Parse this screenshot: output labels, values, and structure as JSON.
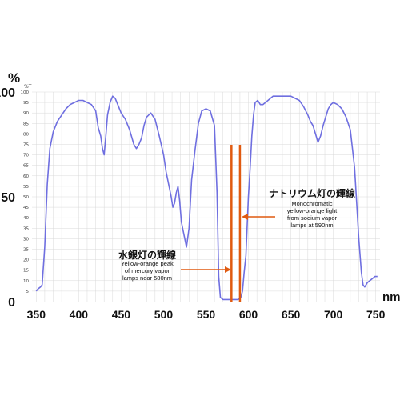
{
  "chart_data": {
    "type": "line",
    "yunit_label": "%",
    "yunit_small": "%T",
    "xunit_label": "nm",
    "xlim": [
      345,
      755
    ],
    "ylim": [
      0,
      100
    ],
    "x_ticks": [
      350,
      400,
      450,
      500,
      550,
      600,
      650,
      700,
      750
    ],
    "y_major_ticks": [
      0,
      50,
      100
    ],
    "y_minor_ticks": [
      5,
      10,
      15,
      20,
      25,
      30,
      35,
      40,
      45,
      50,
      55,
      60,
      65,
      70,
      75,
      80,
      85,
      90,
      95,
      100
    ],
    "series": [
      {
        "color": "#6f6fe0",
        "x": [
          350,
          352,
          355,
          357,
          360,
          363,
          366,
          370,
          375,
          380,
          385,
          390,
          395,
          400,
          405,
          410,
          415,
          420,
          423,
          426,
          428,
          430,
          432,
          434,
          437,
          440,
          443,
          446,
          450,
          455,
          460,
          465,
          468,
          471,
          474,
          477,
          480,
          485,
          490,
          495,
          500,
          503,
          506,
          509,
          511,
          513,
          515,
          517,
          519,
          521,
          524,
          527,
          530,
          533,
          537,
          541,
          545,
          550,
          555,
          560,
          563,
          565,
          567,
          570,
          575,
          580,
          585,
          588,
          591,
          593,
          595,
          597,
          600,
          602,
          604,
          606,
          608,
          611,
          614,
          617,
          620,
          623,
          626,
          629,
          632,
          635,
          640,
          645,
          650,
          655,
          660,
          665,
          670,
          673,
          676,
          679,
          682,
          685,
          688,
          691,
          694,
          697,
          700,
          705,
          710,
          715,
          720,
          725,
          730,
          733,
          735,
          737,
          740,
          743,
          746,
          749,
          752
        ],
        "y": [
          5,
          6,
          7,
          8,
          26,
          56,
          73,
          81,
          86,
          89,
          92,
          94,
          95,
          96,
          96,
          95,
          94,
          91,
          83,
          79,
          73,
          70,
          79,
          89,
          95,
          98,
          97,
          94,
          90,
          87,
          82,
          75,
          73,
          75,
          78,
          84,
          88,
          90,
          87,
          79,
          70,
          62,
          56,
          50,
          45,
          47,
          52,
          55,
          48,
          38,
          32,
          26,
          35,
          58,
          72,
          85,
          91,
          92,
          91,
          84,
          52,
          12,
          2,
          1,
          1,
          1,
          1,
          1,
          2,
          5,
          14,
          22,
          50,
          64,
          79,
          89,
          95,
          96,
          94,
          94,
          95,
          96,
          97,
          98,
          98,
          98,
          98,
          98,
          98,
          97,
          96,
          93,
          89,
          86,
          84,
          80,
          76,
          79,
          84,
          88,
          92,
          94,
          95,
          94,
          92,
          88,
          82,
          64,
          30,
          14,
          8,
          7,
          9,
          10,
          11,
          12,
          12
        ]
      }
    ],
    "markers": [
      {
        "x": 580,
        "color": "#e05a10"
      },
      {
        "x": 590,
        "color": "#e05a10"
      }
    ],
    "annotations": [
      {
        "title": "水銀灯の輝線",
        "lines": [
          "Yellow-orange peak",
          "of mercury vapor",
          "lamps near 580nm"
        ]
      },
      {
        "title": "ナトリウム灯の輝線",
        "lines": [
          "Monochromatic",
          "yellow-orange light",
          "from sodium vapor",
          "lamps at 590nm"
        ]
      }
    ]
  }
}
